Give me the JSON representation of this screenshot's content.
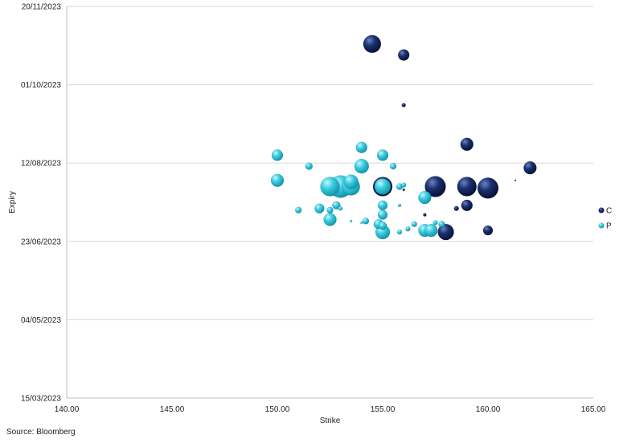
{
  "chart_data": {
    "type": "scatter",
    "title": "",
    "xlabel": "Strike",
    "ylabel": "Expiry",
    "xlim": [
      140,
      165
    ],
    "ylim": [
      "2023-03-15",
      "2023-11-20"
    ],
    "x_ticks": [
      "140.00",
      "145.00",
      "150.00",
      "155.00",
      "160.00",
      "165.00"
    ],
    "y_ticks": [
      "20/11/2023",
      "01/10/2023",
      "12/08/2023",
      "23/06/2023",
      "04/05/2023",
      "15/03/2023"
    ],
    "grid": "horizontal",
    "legend_position": "right",
    "series": [
      {
        "name": "C",
        "color": "#0d2050",
        "points": [
          {
            "x": 154.5,
            "y": "2023-10-27",
            "size": 11
          },
          {
            "x": 156.0,
            "y": "2023-10-20",
            "size": 7
          },
          {
            "x": 156.0,
            "y": "2023-09-18",
            "size": 2.5
          },
          {
            "x": 159.0,
            "y": "2023-08-24",
            "size": 8
          },
          {
            "x": 162.0,
            "y": "2023-08-09",
            "size": 8
          },
          {
            "x": 161.3,
            "y": "2023-08-01",
            "size": 1
          },
          {
            "x": 155.0,
            "y": "2023-07-28",
            "size": 12
          },
          {
            "x": 157.5,
            "y": "2023-07-28",
            "size": 13
          },
          {
            "x": 159.0,
            "y": "2023-07-28",
            "size": 12
          },
          {
            "x": 160.0,
            "y": "2023-07-27",
            "size": 13
          },
          {
            "x": 156.0,
            "y": "2023-07-26",
            "size": 1.5
          },
          {
            "x": 158.5,
            "y": "2023-07-14",
            "size": 3
          },
          {
            "x": 159.0,
            "y": "2023-07-16",
            "size": 7
          },
          {
            "x": 157.0,
            "y": "2023-07-10",
            "size": 2
          },
          {
            "x": 158.0,
            "y": "2023-06-29",
            "size": 10
          },
          {
            "x": 160.0,
            "y": "2023-06-30",
            "size": 6
          }
        ]
      },
      {
        "name": "P",
        "color": "#35c8dc",
        "points": [
          {
            "x": 150.0,
            "y": "2023-08-17",
            "size": 7
          },
          {
            "x": 154.0,
            "y": "2023-08-22",
            "size": 7
          },
          {
            "x": 155.0,
            "y": "2023-08-17",
            "size": 7
          },
          {
            "x": 151.5,
            "y": "2023-08-10",
            "size": 4.5
          },
          {
            "x": 154.0,
            "y": "2023-08-10",
            "size": 9
          },
          {
            "x": 155.5,
            "y": "2023-08-10",
            "size": 4
          },
          {
            "x": 150.0,
            "y": "2023-08-01",
            "size": 8
          },
          {
            "x": 153.5,
            "y": "2023-07-31",
            "size": 9
          },
          {
            "x": 152.5,
            "y": "2023-07-28",
            "size": 12
          },
          {
            "x": 153.0,
            "y": "2023-07-28",
            "size": 14
          },
          {
            "x": 153.5,
            "y": "2023-07-28",
            "size": 11
          },
          {
            "x": 155.0,
            "y": "2023-07-28",
            "size": 10
          },
          {
            "x": 155.8,
            "y": "2023-07-28",
            "size": 4
          },
          {
            "x": 156.0,
            "y": "2023-07-29",
            "size": 3
          },
          {
            "x": 157.0,
            "y": "2023-07-21",
            "size": 8
          },
          {
            "x": 155.0,
            "y": "2023-07-16",
            "size": 6
          },
          {
            "x": 155.8,
            "y": "2023-07-16",
            "size": 2
          },
          {
            "x": 152.8,
            "y": "2023-07-16",
            "size": 5
          },
          {
            "x": 152.0,
            "y": "2023-07-14",
            "size": 6
          },
          {
            "x": 152.5,
            "y": "2023-07-13",
            "size": 4
          },
          {
            "x": 153.0,
            "y": "2023-07-14",
            "size": 2.5
          },
          {
            "x": 151.0,
            "y": "2023-07-13",
            "size": 4
          },
          {
            "x": 155.0,
            "y": "2023-07-10",
            "size": 6
          },
          {
            "x": 152.5,
            "y": "2023-07-07",
            "size": 8
          },
          {
            "x": 153.5,
            "y": "2023-07-06",
            "size": 1.5
          },
          {
            "x": 154.0,
            "y": "2023-07-05",
            "size": 1.5
          },
          {
            "x": 154.2,
            "y": "2023-07-06",
            "size": 4
          },
          {
            "x": 154.8,
            "y": "2023-07-04",
            "size": 6
          },
          {
            "x": 155.0,
            "y": "2023-06-29",
            "size": 9
          },
          {
            "x": 155.0,
            "y": "2023-07-03",
            "size": 5
          },
          {
            "x": 156.2,
            "y": "2023-07-01",
            "size": 3
          },
          {
            "x": 156.5,
            "y": "2023-07-04",
            "size": 3.5
          },
          {
            "x": 157.0,
            "y": "2023-06-30",
            "size": 8
          },
          {
            "x": 157.3,
            "y": "2023-06-30",
            "size": 8
          },
          {
            "x": 157.8,
            "y": "2023-07-04",
            "size": 4
          },
          {
            "x": 157.5,
            "y": "2023-07-05",
            "size": 3
          },
          {
            "x": 155.8,
            "y": "2023-06-29",
            "size": 3
          }
        ]
      }
    ]
  },
  "footer": {
    "source": "Source: Bloomberg"
  }
}
